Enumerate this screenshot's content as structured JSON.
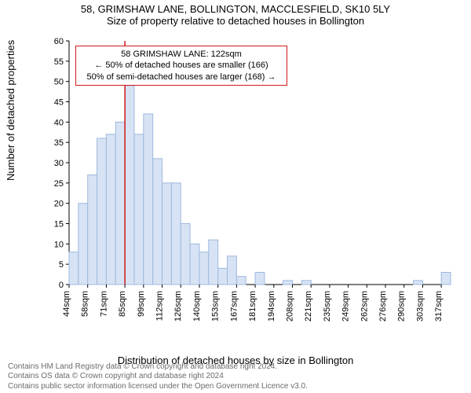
{
  "title_main": "58, GRIMSHAW LANE, BOLLINGTON, MACCLESFIELD, SK10 5LY",
  "title_sub": "Size of property relative to detached houses in Bollington",
  "y_axis": {
    "label": "Number of detached properties",
    "min": 0,
    "max": 60,
    "ticks": [
      0,
      5,
      10,
      15,
      20,
      25,
      30,
      35,
      40,
      45,
      50,
      55,
      60
    ]
  },
  "x_axis": {
    "label": "Distribution of detached houses by size in Bollington",
    "tick_labels": [
      "44sqm",
      "58sqm",
      "71sqm",
      "85sqm",
      "99sqm",
      "112sqm",
      "126sqm",
      "140sqm",
      "153sqm",
      "167sqm",
      "181sqm",
      "194sqm",
      "208sqm",
      "221sqm",
      "235sqm",
      "249sqm",
      "262sqm",
      "276sqm",
      "290sqm",
      "303sqm",
      "317sqm"
    ]
  },
  "histogram": {
    "type": "histogram",
    "values": [
      8,
      20,
      27,
      36,
      37,
      40,
      49,
      37,
      42,
      31,
      25,
      25,
      15,
      10,
      8,
      11,
      4,
      7,
      2,
      0,
      3,
      0,
      0,
      1,
      0,
      1,
      0,
      0,
      0,
      0,
      0,
      0,
      0,
      0,
      0,
      0,
      0,
      1,
      0,
      0,
      3
    ],
    "bar_fill": "#d7e3f4",
    "bar_stroke": "#9fb8de",
    "bar_stroke_width": 1,
    "background": "#ffffff"
  },
  "marker_line": {
    "color": "#d11919",
    "width": 1.5,
    "bin_index": 6
  },
  "annotation": {
    "border_color": "#d11919",
    "line1": "58 GRIMSHAW LANE: 122sqm",
    "line2": "← 50% of detached houses are smaller (166)",
    "line3": "50% of semi-detached houses are larger (168) →"
  },
  "footer": {
    "line1": "Contains HM Land Registry data © Crown copyright and database right 2024.",
    "line2": "Contains OS data © Crown copyright and database right 2024",
    "line3": "Contains public sector information licensed under the Open Government Licence v3.0."
  },
  "style": {
    "tick_color": "#000000",
    "axis_color": "#000000",
    "tick_fontsize": 11,
    "title_fontsize": 13,
    "label_fontsize": 13,
    "footer_color": "#6b6b6b",
    "footer_fontsize": 10
  }
}
